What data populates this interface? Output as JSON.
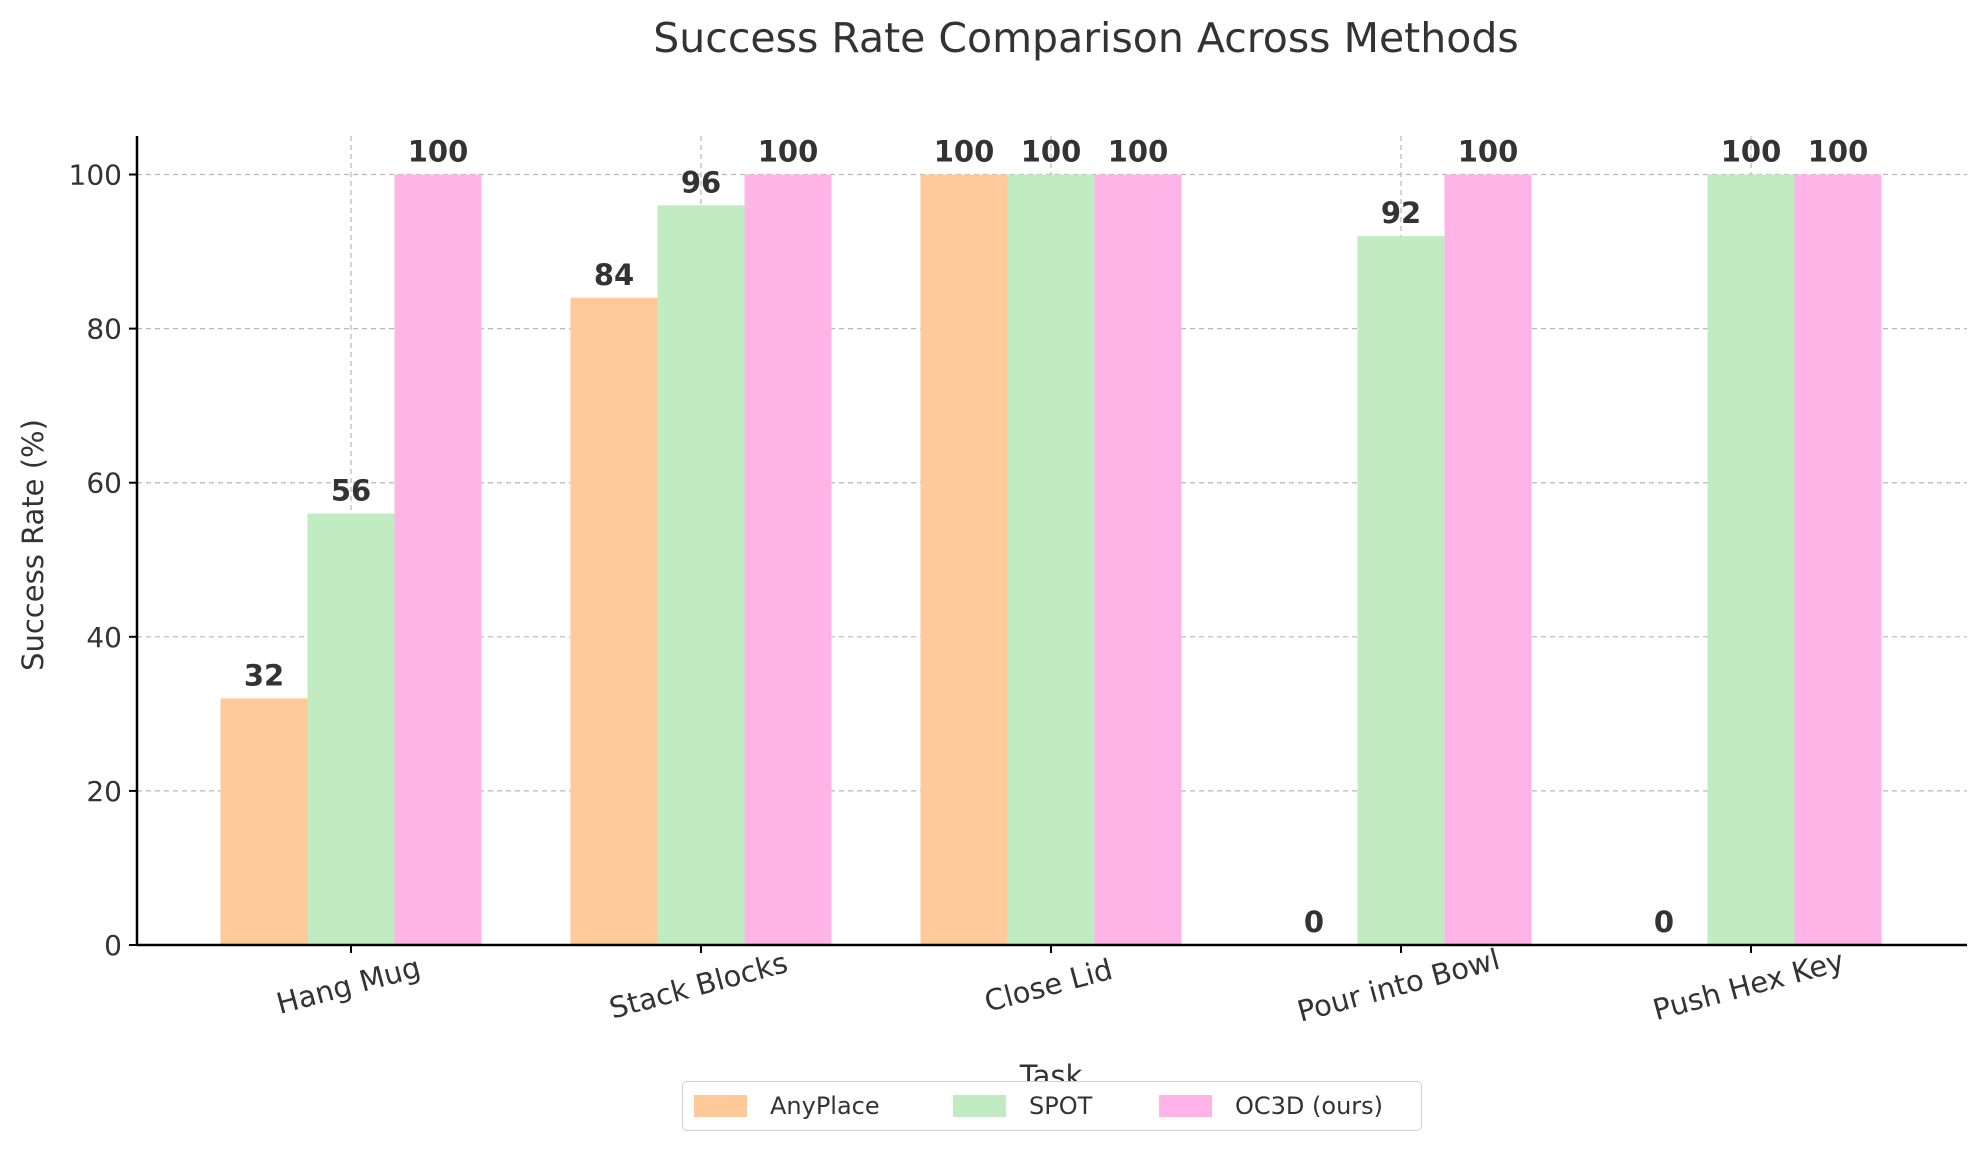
{
  "chart_data": {
    "type": "bar",
    "title": "Success Rate Comparison Across Methods",
    "xlabel": "Task",
    "ylabel": "Success Rate (%)",
    "ylim": [
      0,
      105
    ],
    "yticks": [
      0,
      20,
      40,
      60,
      80,
      100
    ],
    "grid": true,
    "legend_position": "bottom-center",
    "categories": [
      "Hang Mug",
      "Stack Blocks",
      "Close Lid",
      "Pour into Bowl",
      "Push Hex Key"
    ],
    "series": [
      {
        "name": "AnyPlace",
        "color": "#ffc999",
        "values": [
          32,
          84,
          100,
          0,
          0
        ]
      },
      {
        "name": "SPOT",
        "color": "#c1ecc1",
        "values": [
          56,
          96,
          100,
          92,
          100
        ]
      },
      {
        "name": "OC3D (ours)",
        "color": "#ffb3e6",
        "values": [
          100,
          100,
          100,
          100,
          100
        ]
      }
    ]
  }
}
